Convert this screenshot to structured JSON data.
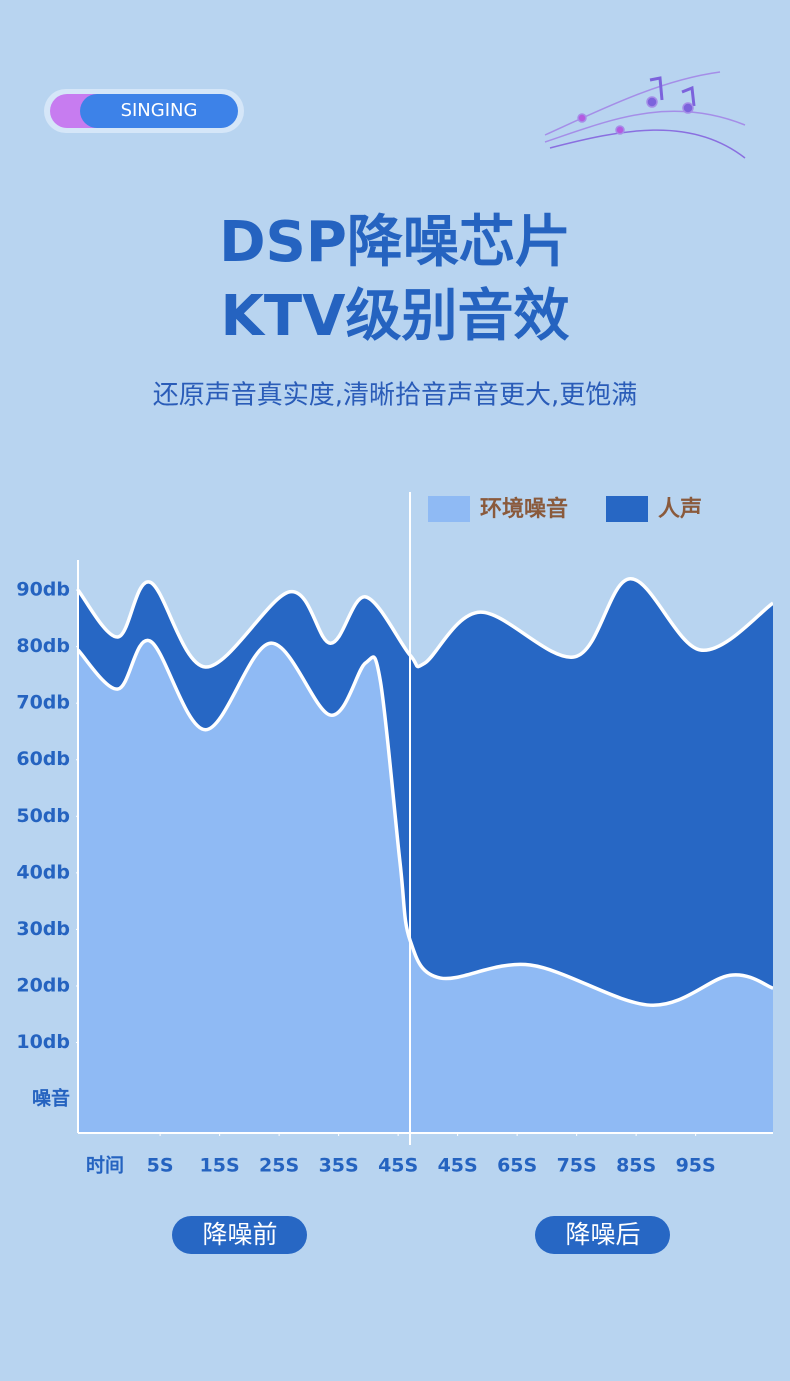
{
  "header": {
    "badge": "SINGING",
    "title_lines": [
      "DSP降噪芯片",
      "KTV级别音效"
    ],
    "subtitle": "还原声音真实度,清晰拾音声音更大,更饱满"
  },
  "chart_data": {
    "type": "area",
    "x_label": "时间",
    "y_label": "噪音",
    "xlim": [
      -0.38,
      11.3
    ],
    "xticks": [
      {
        "value": 1,
        "label": "5S"
      },
      {
        "value": 2,
        "label": "15S"
      },
      {
        "value": 3,
        "label": "25S"
      },
      {
        "value": 4,
        "label": "35S"
      },
      {
        "value": 5,
        "label": "45S"
      },
      {
        "value": 6,
        "label": "45S"
      },
      {
        "value": 7,
        "label": "65S"
      },
      {
        "value": 8,
        "label": "75S"
      },
      {
        "value": 9,
        "label": "85S"
      },
      {
        "value": 10,
        "label": "95S"
      }
    ],
    "ylim": [
      -6,
      95
    ],
    "yticks": [
      {
        "value": 10,
        "label": "10db"
      },
      {
        "value": 20,
        "label": "20db"
      },
      {
        "value": 30,
        "label": "30db"
      },
      {
        "value": 40,
        "label": "40db"
      },
      {
        "value": 50,
        "label": "50db"
      },
      {
        "value": 60,
        "label": "60db"
      },
      {
        "value": 70,
        "label": "70db"
      },
      {
        "value": 80,
        "label": "80db"
      },
      {
        "value": 90,
        "label": "90db"
      }
    ],
    "series": [
      {
        "name": "环境噪音",
        "color": "#8fbaf4",
        "x": [
          -0.38,
          0.29,
          0.83,
          1.76,
          2.85,
          3.86,
          4.45,
          4.7,
          5.03,
          5.2,
          5.71,
          7.22,
          9.24,
          10.58,
          11.3
        ],
        "values": [
          79.4,
          72.5,
          81,
          65.3,
          80.6,
          67.9,
          77.1,
          74,
          42,
          28.1,
          21.4,
          23.7,
          16.6,
          21.9,
          19.6
        ]
      },
      {
        "name": "人声",
        "color": "#2767c4",
        "x": [
          -0.38,
          0.29,
          0.83,
          1.76,
          3.18,
          3.86,
          4.45,
          5.2,
          5.45,
          6.38,
          7.97,
          8.9,
          10.08,
          11.3
        ],
        "values": [
          90,
          81.7,
          91.4,
          76.4,
          89.7,
          80.6,
          88.8,
          78.5,
          77.1,
          86.1,
          78.2,
          92,
          79.4,
          87.7
        ]
      }
    ]
  },
  "buttons": [
    "降噪前",
    "降噪后"
  ]
}
